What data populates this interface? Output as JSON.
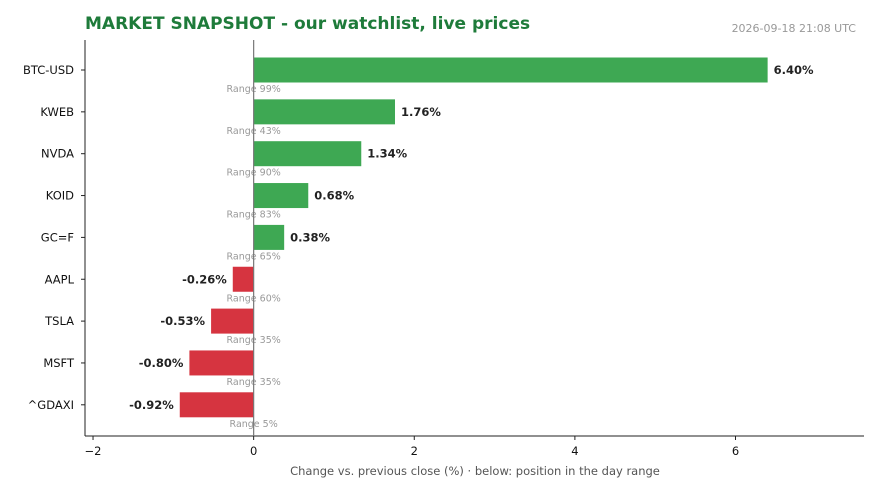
{
  "header": {
    "title": "MARKET SNAPSHOT - our watchlist, live prices",
    "timestamp": "2026-09-18 21:08 UTC"
  },
  "colors": {
    "title": "#1e7b3a",
    "positive": "#3ea853",
    "negative": "#d63440",
    "axis": "#222222",
    "zero_line": "#777777",
    "muted_text": "#999999"
  },
  "chart_data": {
    "type": "bar",
    "orientation": "horizontal",
    "title": "MARKET SNAPSHOT - our watchlist, live prices",
    "xlabel": "Change vs. previous close (%)  ·  below: position in the day range",
    "ylabel": "",
    "xlim": [
      -2.1,
      7.6
    ],
    "xticks": [
      "−2",
      "0",
      "2",
      "4",
      "6"
    ],
    "xtick_values": [
      -2,
      0,
      2,
      4,
      6
    ],
    "categories": [
      "BTC-USD",
      "KWEB",
      "NVDA",
      "KOID",
      "GC=F",
      "AAPL",
      "TSLA",
      "MSFT",
      "^GDAXI"
    ],
    "values": [
      6.4,
      1.76,
      1.34,
      0.68,
      0.38,
      -0.26,
      -0.53,
      -0.8,
      -0.92
    ],
    "value_labels": [
      "6.40%",
      "1.76%",
      "1.34%",
      "0.68%",
      "0.38%",
      "-0.26%",
      "-0.53%",
      "-0.80%",
      "-0.92%"
    ],
    "range_labels": [
      "Range 99%",
      "Range 43%",
      "Range 90%",
      "Range 83%",
      "Range 65%",
      "Range 60%",
      "Range 35%",
      "Range 35%",
      "Range 5%"
    ],
    "grid": false,
    "legend": "none"
  }
}
